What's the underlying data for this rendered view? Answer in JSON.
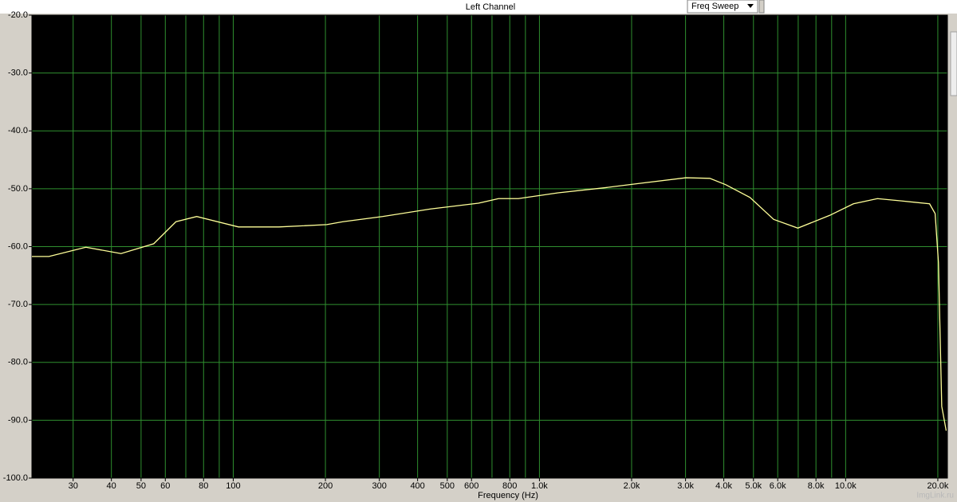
{
  "chart_data": {
    "type": "line",
    "title": "Left Channel",
    "view_mode": "Freq Sweep",
    "xlabel": "Frequency (Hz)",
    "watermark": "ImgLink.ru",
    "xscale": "log",
    "grid": true,
    "background": "#000000",
    "grid_color": "#2f8f2f",
    "xlim": [
      22,
      21500
    ],
    "ylim": [
      -100,
      -20
    ],
    "xticks": [
      30,
      40,
      50,
      60,
      80,
      100,
      200,
      300,
      400,
      500,
      600,
      800,
      {
        "value": 1000,
        "label": "1.0k"
      },
      {
        "value": 2000,
        "label": "2.0k"
      },
      {
        "value": 3000,
        "label": "3.0k"
      },
      {
        "value": 4000,
        "label": "4.0k"
      },
      {
        "value": 5000,
        "label": "5.0k"
      },
      {
        "value": 6000,
        "label": "6.0k"
      },
      {
        "value": 8000,
        "label": "8.0k"
      },
      {
        "value": 10000,
        "label": "10.0k"
      },
      {
        "value": 20000,
        "label": "20.0k"
      }
    ],
    "x_minor_grid": [
      70,
      90,
      700,
      900,
      7000,
      9000
    ],
    "yticks": [
      {
        "value": -20,
        "label": "-20.0"
      },
      {
        "value": -30,
        "label": "-30.0"
      },
      {
        "value": -40,
        "label": "-40.0"
      },
      {
        "value": -50,
        "label": "-50.0"
      },
      {
        "value": -60,
        "label": "-60.0"
      },
      {
        "value": -70,
        "label": "-70.0"
      },
      {
        "value": -80,
        "label": "-80.0"
      },
      {
        "value": -90,
        "label": "-90.0"
      },
      {
        "value": -100,
        "label": "-100.0"
      }
    ],
    "x": [
      22,
      25,
      33,
      43,
      55,
      65,
      76,
      104,
      141,
      202,
      228,
      307,
      441,
      632,
      735,
      853,
      1150,
      1650,
      2100,
      3010,
      3600,
      4060,
      4870,
      5820,
      6980,
      8870,
      10600,
      12700,
      15200,
      18800,
      19600,
      20100,
      20600,
      21300
    ],
    "series": [
      {
        "color": "#ffff99",
        "values": [
          -61.7,
          -61.7,
          -60.1,
          -61.2,
          -59.5,
          -55.7,
          -54.8,
          -56.6,
          -56.6,
          -56.2,
          -55.7,
          -54.8,
          -53.5,
          -52.5,
          -51.7,
          -51.7,
          -50.7,
          -49.8,
          -49.1,
          -48.1,
          -48.2,
          -49.3,
          -51.5,
          -55.3,
          -56.8,
          -54.6,
          -52.6,
          -51.7,
          -52.1,
          -52.6,
          -54.3,
          -62.8,
          -87.6,
          -91.8
        ]
      }
    ]
  }
}
